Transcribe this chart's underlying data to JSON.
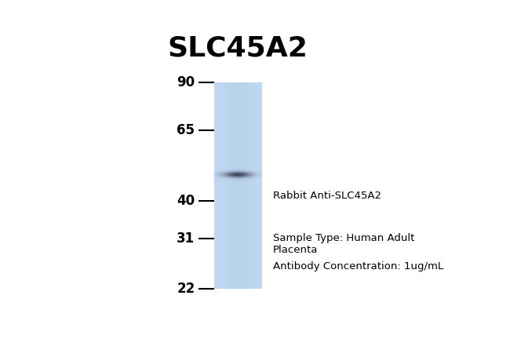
{
  "title": "SLC45A2",
  "title_fontsize": 26,
  "title_fontweight": "bold",
  "background_color": "#ffffff",
  "ladder_labels": [
    "90",
    "65",
    "40",
    "31",
    "22"
  ],
  "ladder_kda": [
    90,
    65,
    40,
    31,
    22
  ],
  "band_kda": 48,
  "lane_color": "#b8cfe8",
  "band_color": "#2a2a3a",
  "annotation_text1": "Rabbit Anti-SLC45A2",
  "annotation_text2": "Sample Type: Human Adult\nPlacenta",
  "annotation_text3": "Antibody Concentration: 1ug/mL",
  "annotation_fontsize": 9.5,
  "tick_fontsize": 12,
  "tick_fontweight": "bold",
  "fig_width": 6.5,
  "fig_height": 4.32,
  "dpi": 100
}
